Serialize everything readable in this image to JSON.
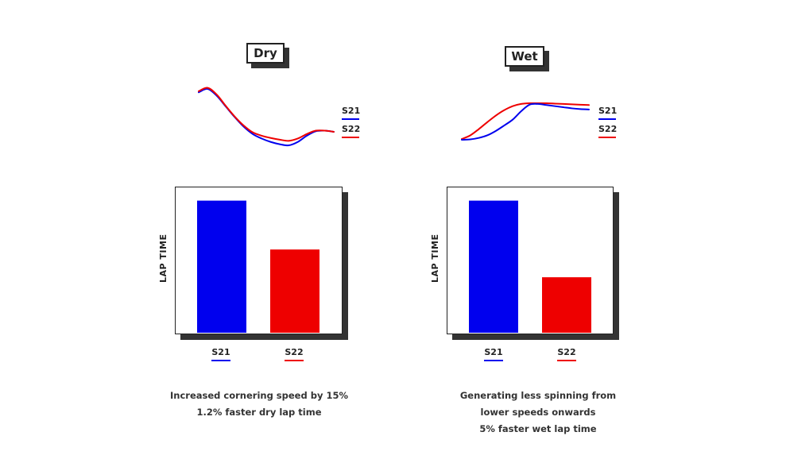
{
  "colors": {
    "s21": "#0000ee",
    "s22": "#ee0000",
    "ink": "#222222"
  },
  "panels": [
    {
      "id": "dry",
      "title": "Dry",
      "legend": [
        "S21",
        "S22"
      ],
      "ylabel": "LAP TIME",
      "categories": [
        "S21",
        "S22"
      ],
      "caption": [
        "Increased cornering speed by 15%",
        "1.2% faster dry lap time"
      ]
    },
    {
      "id": "wet",
      "title": "Wet",
      "legend": [
        "S21",
        "S22"
      ],
      "ylabel": "LAP TIME",
      "categories": [
        "S21",
        "S22"
      ],
      "caption": [
        "Generating less spinning from",
        "lower speeds onwards",
        "5% faster wet lap time"
      ]
    }
  ],
  "chart_data": [
    {
      "type": "line",
      "title": "Dry",
      "xlabel": "",
      "ylabel": "",
      "x": [
        0,
        1,
        2,
        3,
        4,
        5,
        6,
        7,
        8,
        9,
        10,
        11,
        12,
        13,
        14,
        15
      ],
      "series": [
        {
          "name": "S21",
          "values": [
            0.94,
            1.0,
            0.88,
            0.69,
            0.5,
            0.33,
            0.2,
            0.12,
            0.06,
            0.02,
            0.0,
            0.06,
            0.17,
            0.25,
            0.26,
            0.24
          ]
        },
        {
          "name": "S22",
          "values": [
            0.96,
            1.02,
            0.9,
            0.7,
            0.51,
            0.35,
            0.23,
            0.17,
            0.13,
            0.1,
            0.08,
            0.12,
            0.2,
            0.26,
            0.26,
            0.24
          ]
        }
      ],
      "ylim": [
        0,
        1
      ]
    },
    {
      "type": "line",
      "title": "Wet",
      "xlabel": "",
      "ylabel": "",
      "x": [
        0,
        1,
        2,
        3,
        4,
        5,
        6,
        7,
        8,
        9,
        10,
        11,
        12,
        13,
        14,
        15
      ],
      "series": [
        {
          "name": "S21",
          "values": [
            0.0,
            0.01,
            0.05,
            0.12,
            0.24,
            0.39,
            0.55,
            0.78,
            0.96,
            0.98,
            0.95,
            0.92,
            0.89,
            0.86,
            0.84,
            0.83
          ]
        },
        {
          "name": "S22",
          "values": [
            0.02,
            0.12,
            0.29,
            0.48,
            0.66,
            0.81,
            0.92,
            0.98,
            1.0,
            1.0,
            1.0,
            0.99,
            0.98,
            0.97,
            0.96,
            0.95
          ]
        }
      ],
      "ylim": [
        0,
        1
      ]
    },
    {
      "type": "bar",
      "title": "Dry",
      "categories": [
        "S21",
        "S22"
      ],
      "ylabel": "LAP TIME",
      "values": [
        100,
        63
      ],
      "ylim": [
        0,
        110
      ]
    },
    {
      "type": "bar",
      "title": "Wet",
      "categories": [
        "S21",
        "S22"
      ],
      "ylabel": "LAP TIME",
      "values": [
        100,
        42
      ],
      "ylim": [
        0,
        110
      ]
    }
  ]
}
